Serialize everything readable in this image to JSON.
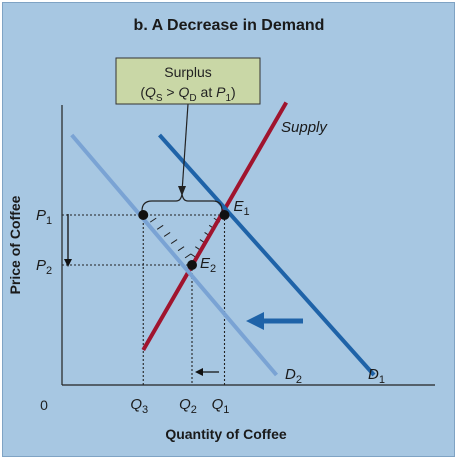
{
  "chart_data": {
    "type": "line",
    "title": "b. A Decrease in Demand",
    "xlabel": "Quantity of Coffee",
    "ylabel": "Price of Coffee",
    "origin_label": "0",
    "xlim": [
      0,
      10
    ],
    "ylim": [
      0,
      10
    ],
    "x_ticks": [
      {
        "sym": "Q",
        "sub": "3",
        "value": 2.5
      },
      {
        "sym": "Q",
        "sub": "2",
        "value": 4.0
      },
      {
        "sym": "Q",
        "sub": "1",
        "value": 5.0
      }
    ],
    "y_ticks": [
      {
        "sym": "P",
        "sub": "1",
        "value": 6.8
      },
      {
        "sym": "P",
        "sub": "2",
        "value": 4.8
      }
    ],
    "series": [
      {
        "name": "Supply",
        "color": "#a0142e",
        "points": [
          [
            2.5,
            1.4
          ],
          [
            6.9,
            11.3
          ]
        ]
      },
      {
        "sym": "D",
        "sub": "1",
        "color": "#1f63a8",
        "points": [
          [
            3.0,
            10.0
          ],
          [
            9.6,
            0.4
          ]
        ]
      },
      {
        "sym": "D",
        "sub": "2",
        "color": "#7aa3d4",
        "points": [
          [
            0.3,
            10.0
          ],
          [
            6.6,
            0.4
          ]
        ]
      }
    ],
    "equilibria": [
      {
        "sym": "E",
        "sub": "1",
        "x": 5.0,
        "y": 6.8
      },
      {
        "sym": "E",
        "sub": "2",
        "x": 4.0,
        "y": 4.8
      }
    ],
    "extra_points": [
      {
        "x": 2.5,
        "y": 6.8
      }
    ],
    "annotation": {
      "line1": "Surplus",
      "line2": {
        "open": "(",
        "q1": "Q",
        "q1sub": "S",
        "op": " > ",
        "q2": "Q",
        "q2sub": "D",
        "at": " at ",
        "p": "P",
        "psub": "1",
        "close": ")"
      }
    },
    "grid": false,
    "legend": "none"
  }
}
